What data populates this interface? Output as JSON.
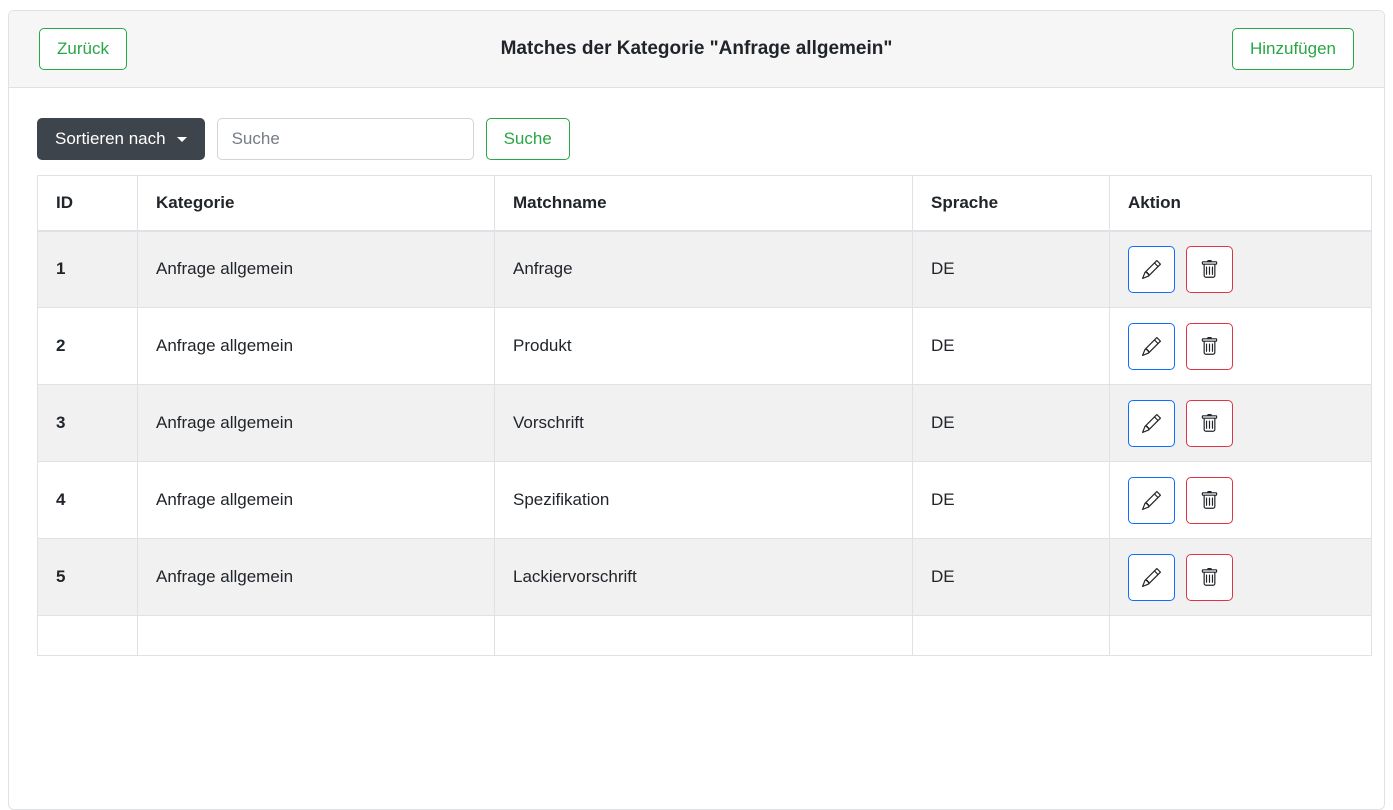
{
  "header": {
    "back_label": "Zurück",
    "title": "Matches der Kategorie \"Anfrage allgemein\"",
    "add_label": "Hinzufügen"
  },
  "toolbar": {
    "sort_label": "Sortieren nach",
    "search_placeholder": "Suche",
    "search_value": "",
    "search_button_label": "Suche"
  },
  "table": {
    "columns": [
      "ID",
      "Kategorie",
      "Matchname",
      "Sprache",
      "Aktion"
    ],
    "rows": [
      {
        "id": "1",
        "kategorie": "Anfrage allgemein",
        "matchname": "Anfrage",
        "sprache": "DE"
      },
      {
        "id": "2",
        "kategorie": "Anfrage allgemein",
        "matchname": "Produkt",
        "sprache": "DE"
      },
      {
        "id": "3",
        "kategorie": "Anfrage allgemein",
        "matchname": "Vorschrift",
        "sprache": "DE"
      },
      {
        "id": "4",
        "kategorie": "Anfrage allgemein",
        "matchname": "Spezifikation",
        "sprache": "DE"
      },
      {
        "id": "5",
        "kategorie": "Anfrage allgemein",
        "matchname": "Lackiervorschrift",
        "sprache": "DE"
      }
    ],
    "action_icons": [
      "pencil-icon",
      "trash-icon"
    ]
  },
  "colors": {
    "accent_green": "#28a745",
    "accent_blue": "#0d6efd",
    "accent_red": "#dc3545",
    "dark_button": "#3e444b",
    "stripe": "#f1f1f2",
    "header_bg": "#f6f6f7",
    "border": "#dee2e6"
  }
}
